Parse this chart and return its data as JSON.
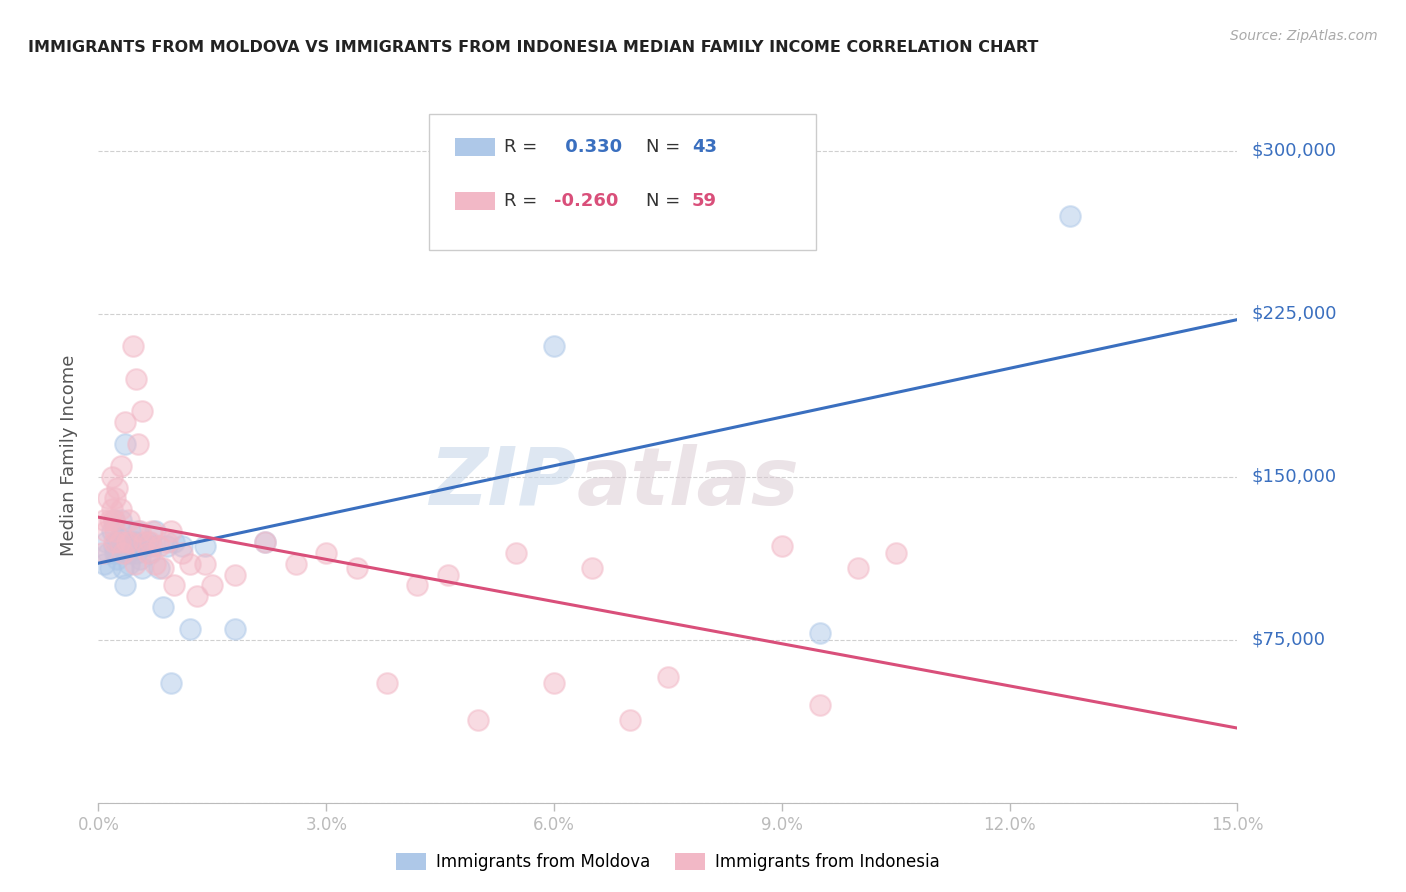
{
  "title": "IMMIGRANTS FROM MOLDOVA VS IMMIGRANTS FROM INDONESIA MEDIAN FAMILY INCOME CORRELATION CHART",
  "source": "Source: ZipAtlas.com",
  "ylabel": "Median Family Income",
  "yticks": [
    0,
    75000,
    150000,
    225000,
    300000
  ],
  "ytick_labels": [
    "",
    "$75,000",
    "$150,000",
    "$225,000",
    "$300,000"
  ],
  "xmin": 0.0,
  "xmax": 0.15,
  "ymin": 0,
  "ymax": 320000,
  "moldova_color": "#aec8e8",
  "indonesia_color": "#f2b8c6",
  "moldova_line_color": "#3a6fbf",
  "indonesia_line_color": "#d94f7a",
  "moldova_R": 0.33,
  "moldova_N": 43,
  "indonesia_R": -0.26,
  "indonesia_N": 59,
  "moldova_scatter_x": [
    0.0008,
    0.001,
    0.0012,
    0.0015,
    0.0018,
    0.002,
    0.002,
    0.0022,
    0.0025,
    0.0025,
    0.0028,
    0.003,
    0.0032,
    0.0035,
    0.0035,
    0.0038,
    0.004,
    0.004,
    0.0042,
    0.0045,
    0.0048,
    0.005,
    0.0052,
    0.0055,
    0.0058,
    0.006,
    0.0065,
    0.0068,
    0.007,
    0.0075,
    0.008,
    0.0085,
    0.009,
    0.0095,
    0.01,
    0.011,
    0.012,
    0.014,
    0.018,
    0.022,
    0.06,
    0.095,
    0.128
  ],
  "moldova_scatter_y": [
    110000,
    120000,
    115000,
    108000,
    125000,
    118000,
    130000,
    115000,
    120000,
    112000,
    122000,
    130000,
    108000,
    165000,
    100000,
    115000,
    120000,
    110000,
    125000,
    118000,
    120000,
    115000,
    125000,
    112000,
    108000,
    118000,
    120000,
    115000,
    118000,
    125000,
    108000,
    90000,
    118000,
    55000,
    120000,
    118000,
    80000,
    118000,
    80000,
    120000,
    210000,
    78000,
    270000
  ],
  "indonesia_scatter_x": [
    0.0005,
    0.0008,
    0.001,
    0.0012,
    0.0015,
    0.0018,
    0.0018,
    0.002,
    0.002,
    0.0022,
    0.0022,
    0.0025,
    0.0028,
    0.003,
    0.003,
    0.0032,
    0.0035,
    0.0038,
    0.004,
    0.0042,
    0.0045,
    0.0048,
    0.005,
    0.0052,
    0.0055,
    0.0058,
    0.006,
    0.0065,
    0.0068,
    0.007,
    0.0075,
    0.008,
    0.0085,
    0.009,
    0.0095,
    0.01,
    0.011,
    0.012,
    0.013,
    0.014,
    0.015,
    0.018,
    0.022,
    0.026,
    0.03,
    0.034,
    0.038,
    0.042,
    0.046,
    0.05,
    0.055,
    0.06,
    0.065,
    0.07,
    0.075,
    0.09,
    0.095,
    0.1,
    0.105
  ],
  "indonesia_scatter_y": [
    115000,
    130000,
    125000,
    140000,
    130000,
    135000,
    150000,
    130000,
    120000,
    140000,
    125000,
    145000,
    120000,
    135000,
    155000,
    115000,
    175000,
    120000,
    130000,
    120000,
    210000,
    110000,
    195000,
    165000,
    125000,
    180000,
    120000,
    115000,
    120000,
    125000,
    110000,
    118000,
    108000,
    120000,
    125000,
    100000,
    115000,
    110000,
    95000,
    110000,
    100000,
    105000,
    120000,
    110000,
    115000,
    108000,
    55000,
    100000,
    105000,
    38000,
    115000,
    55000,
    108000,
    38000,
    58000,
    118000,
    45000,
    108000,
    115000
  ],
  "watermark_zip": "ZIP",
  "watermark_atlas": "atlas",
  "background_color": "#ffffff",
  "grid_color": "#d0d0d0"
}
